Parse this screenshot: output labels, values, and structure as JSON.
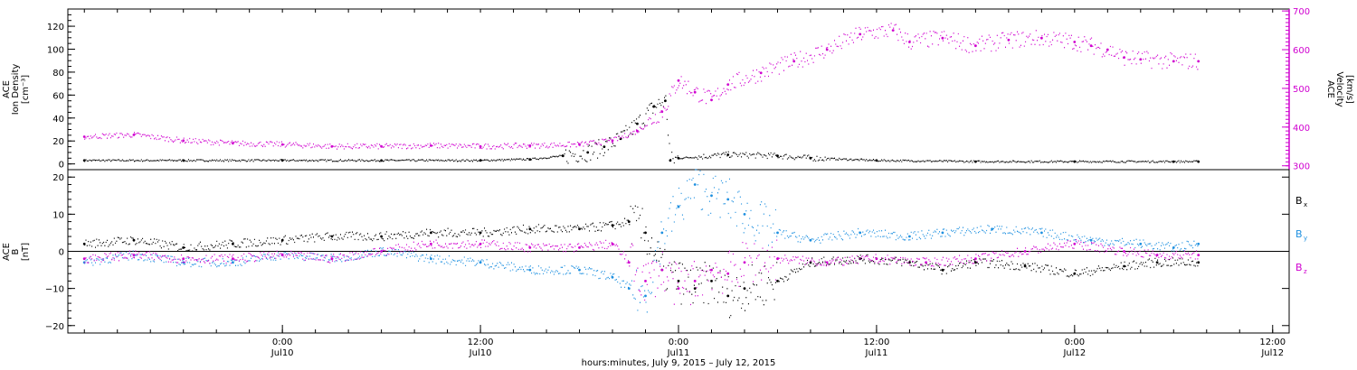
{
  "chart_data": [
    {
      "type": "scatter",
      "panel": "top",
      "left_axis": {
        "label_lines": [
          "ACE",
          "Ion Density"
        ],
        "unit": "[cm⁻³]",
        "ylim": [
          -5,
          135
        ],
        "ticks": [
          0,
          20,
          40,
          60,
          80,
          100,
          120
        ],
        "tick_labels": [
          "0",
          "20",
          "40",
          "60",
          "80",
          "100",
          "120"
        ],
        "color": "#000000"
      },
      "right_axis": {
        "label_lines": [
          "ACE",
          "Velocity"
        ],
        "unit": "[km/s]",
        "ylim": [
          290,
          705
        ],
        "ticks": [
          300,
          400,
          500,
          600,
          700
        ],
        "tick_labels": [
          "300",
          "400",
          "500",
          "600",
          "700"
        ],
        "color": "#d000d0"
      },
      "series": [
        {
          "color": "#000000",
          "axis": "left",
          "points": [
            [
              -12,
              3
            ],
            [
              -6,
              3
            ],
            [
              0,
              3
            ],
            [
              6,
              3
            ],
            [
              12,
              3
            ],
            [
              15,
              4
            ],
            [
              17,
              7
            ],
            [
              18.5,
              10
            ],
            [
              19.5,
              15
            ],
            [
              20.5,
              22
            ],
            [
              21.5,
              35
            ],
            [
              22.5,
              50
            ],
            [
              23.2,
              55
            ],
            [
              23.5,
              3
            ],
            [
              24,
              5
            ],
            [
              27,
              8
            ],
            [
              30,
              7
            ],
            [
              32,
              5
            ],
            [
              36,
              3
            ],
            [
              42,
              2
            ],
            [
              48,
              2
            ],
            [
              54,
              2
            ],
            [
              55.5,
              2
            ]
          ]
        },
        {
          "color": "#d000d0",
          "axis": "right",
          "points": [
            [
              -12,
              375
            ],
            [
              -9,
              380
            ],
            [
              -6,
              365
            ],
            [
              -3,
              358
            ],
            [
              0,
              355
            ],
            [
              3,
              350
            ],
            [
              6,
              350
            ],
            [
              9,
              352
            ],
            [
              12,
              350
            ],
            [
              15,
              352
            ],
            [
              18,
              355
            ],
            [
              20,
              365
            ],
            [
              21.5,
              390
            ],
            [
              23,
              440
            ],
            [
              24,
              520
            ],
            [
              25,
              490
            ],
            [
              26,
              470
            ],
            [
              27,
              510
            ],
            [
              29,
              540
            ],
            [
              31,
              570
            ],
            [
              33,
              600
            ],
            [
              35,
              640
            ],
            [
              37,
              650
            ],
            [
              38,
              620
            ],
            [
              40,
              630
            ],
            [
              42,
              610
            ],
            [
              44,
              625
            ],
            [
              46,
              630
            ],
            [
              48,
              620
            ],
            [
              49,
              610
            ],
            [
              50,
              600
            ],
            [
              51,
              580
            ],
            [
              52,
              575
            ],
            [
              54,
              570
            ],
            [
              55.5,
              570
            ]
          ]
        }
      ]
    },
    {
      "type": "scatter",
      "panel": "bottom",
      "left_axis": {
        "label_lines": [
          "ACE",
          "B"
        ],
        "unit": "[nT]",
        "ylim": [
          -22,
          22
        ],
        "ticks": [
          -20,
          -10,
          0,
          10,
          20
        ],
        "tick_labels": [
          "−20",
          "−10",
          "0",
          "10",
          "20"
        ],
        "color": "#000000"
      },
      "zero_line": true,
      "series": [
        {
          "name": "B",
          "subscript": "x",
          "color": "#000000",
          "points": [
            [
              -12,
              2
            ],
            [
              -9,
              3
            ],
            [
              -6,
              1
            ],
            [
              -3,
              2
            ],
            [
              0,
              3
            ],
            [
              3,
              4
            ],
            [
              6,
              4
            ],
            [
              9,
              5
            ],
            [
              12,
              5
            ],
            [
              15,
              6
            ],
            [
              18,
              6
            ],
            [
              20,
              7
            ],
            [
              21,
              8
            ],
            [
              22,
              5
            ],
            [
              23,
              -5
            ],
            [
              24,
              -8
            ],
            [
              25,
              -10
            ],
            [
              26,
              -8
            ],
            [
              27,
              -12
            ],
            [
              28,
              -10
            ],
            [
              30,
              -8
            ],
            [
              32,
              -3
            ],
            [
              35,
              -2
            ],
            [
              38,
              -3
            ],
            [
              40,
              -5
            ],
            [
              42,
              -3
            ],
            [
              45,
              -4
            ],
            [
              48,
              -6
            ],
            [
              51,
              -4
            ],
            [
              53,
              -3
            ],
            [
              55.5,
              -3
            ]
          ]
        },
        {
          "name": "B",
          "subscript": "y",
          "color": "#1e90e0",
          "points": [
            [
              -12,
              -3
            ],
            [
              -9,
              -1
            ],
            [
              -6,
              -3
            ],
            [
              -3,
              -3
            ],
            [
              0,
              -1
            ],
            [
              3,
              -2
            ],
            [
              6,
              0
            ],
            [
              9,
              -2
            ],
            [
              12,
              -3
            ],
            [
              15,
              -5
            ],
            [
              18,
              -5
            ],
            [
              20,
              -7
            ],
            [
              21,
              -10
            ],
            [
              22,
              -12
            ],
            [
              23,
              5
            ],
            [
              24,
              12
            ],
            [
              25,
              18
            ],
            [
              26,
              15
            ],
            [
              27,
              14
            ],
            [
              28,
              10
            ],
            [
              30,
              5
            ],
            [
              32,
              3
            ],
            [
              35,
              5
            ],
            [
              38,
              4
            ],
            [
              40,
              5
            ],
            [
              43,
              6
            ],
            [
              46,
              5
            ],
            [
              49,
              3
            ],
            [
              52,
              2
            ],
            [
              54,
              1
            ],
            [
              55.5,
              2
            ]
          ]
        },
        {
          "name": "B",
          "subscript": "z",
          "color": "#d000d0",
          "points": [
            [
              -12,
              -2
            ],
            [
              -9,
              -1
            ],
            [
              -6,
              -2
            ],
            [
              -3,
              -2
            ],
            [
              0,
              -1
            ],
            [
              3,
              -2
            ],
            [
              6,
              0
            ],
            [
              9,
              2
            ],
            [
              12,
              2
            ],
            [
              15,
              1
            ],
            [
              18,
              1
            ],
            [
              20,
              2
            ],
            [
              21,
              -3
            ],
            [
              22,
              -8
            ],
            [
              23,
              -5
            ],
            [
              24,
              -10
            ],
            [
              25,
              -8
            ],
            [
              26,
              -5
            ],
            [
              27,
              -6
            ],
            [
              28,
              -3
            ],
            [
              30,
              -2
            ],
            [
              33,
              -3
            ],
            [
              36,
              -2
            ],
            [
              39,
              -3
            ],
            [
              42,
              -2
            ],
            [
              45,
              0
            ],
            [
              48,
              2
            ],
            [
              51,
              0
            ],
            [
              53,
              -1
            ],
            [
              55.5,
              -1
            ]
          ]
        }
      ]
    }
  ],
  "x_axis": {
    "xlim": [
      -13,
      61
    ],
    "ticks": [
      0,
      12,
      24,
      36,
      48,
      60
    ],
    "tick_labels": [
      {
        "time": "0:00",
        "date": "Jul10"
      },
      {
        "time": "12:00",
        "date": "Jul10"
      },
      {
        "time": "0:00",
        "date": "Jul11"
      },
      {
        "time": "12:00",
        "date": "Jul11"
      },
      {
        "time": "0:00",
        "date": "Jul12"
      },
      {
        "time": "12:00",
        "date": "Jul12"
      }
    ],
    "xlabel": "hours:minutes, July  9, 2015 – July 12, 2015"
  }
}
